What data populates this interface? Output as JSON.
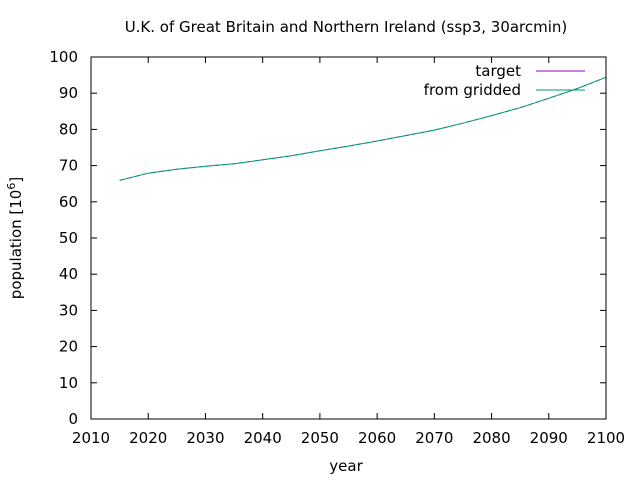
{
  "chart_data": {
    "type": "line",
    "title": "U.K. of Great Britain and Northern Ireland (ssp3, 30arcmin)",
    "xlabel": "year",
    "ylabel": "population [10",
    "ylabel_sup": "6",
    "ylabel_end": "]",
    "xlim": [
      2010,
      2100
    ],
    "ylim": [
      0,
      100
    ],
    "xticks": [
      2010,
      2020,
      2030,
      2040,
      2050,
      2060,
      2070,
      2080,
      2090,
      2100
    ],
    "yticks": [
      0,
      10,
      20,
      30,
      40,
      50,
      60,
      70,
      80,
      90,
      100
    ],
    "grid": false,
    "legend_position": "top-right",
    "x": [
      2015,
      2020,
      2025,
      2030,
      2035,
      2040,
      2045,
      2050,
      2055,
      2060,
      2065,
      2070,
      2075,
      2080,
      2085,
      2090,
      2095,
      2100
    ],
    "series": [
      {
        "name": "target",
        "color": "#9400d3",
        "values": [
          65.9,
          67.9,
          69.0,
          69.8,
          70.5,
          71.6,
          72.7,
          74.1,
          75.4,
          76.8,
          78.3,
          79.8,
          81.7,
          83.8,
          86.0,
          88.6,
          91.3,
          94.4
        ]
      },
      {
        "name": "from gridded",
        "color": "#009e73",
        "values": [
          65.9,
          67.9,
          69.0,
          69.8,
          70.5,
          71.6,
          72.7,
          74.1,
          75.4,
          76.8,
          78.3,
          79.8,
          81.7,
          83.8,
          86.0,
          88.6,
          91.3,
          94.4
        ]
      }
    ]
  }
}
